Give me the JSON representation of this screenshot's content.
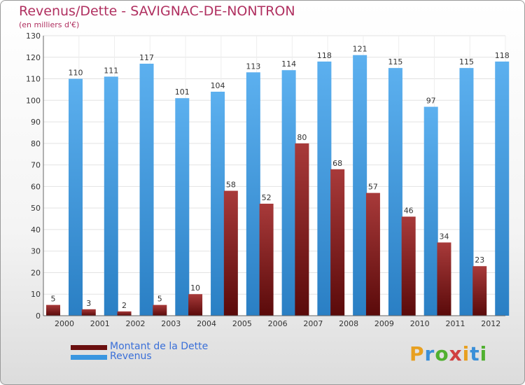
{
  "title": "Revenus/Dette - SAVIGNAC-DE-NONTRON",
  "subtitle": "(en milliers d'€)",
  "brand": {
    "letters": [
      "P",
      "r",
      "o",
      "x",
      "i",
      "t",
      "i"
    ],
    "colors": [
      "#e8a020",
      "#3a8fd8",
      "#50b030",
      "#d04040",
      "#e8a020",
      "#3a8fd8",
      "#50b030"
    ]
  },
  "chart_data": {
    "type": "bar",
    "categories": [
      "2000",
      "2001",
      "2002",
      "2003",
      "2004",
      "2005",
      "2006",
      "2007",
      "2008",
      "2009",
      "2010",
      "2011",
      "2012"
    ],
    "series": [
      {
        "name": "Montant de la Dette",
        "values": [
          5,
          3,
          2,
          5,
          10,
          58,
          52,
          80,
          68,
          57,
          46,
          34,
          23
        ],
        "color": "#7a1a1a"
      },
      {
        "name": "Revenus",
        "values": [
          110,
          111,
          117,
          101,
          104,
          113,
          114,
          118,
          121,
          115,
          97,
          115,
          118
        ],
        "color": "#3a96e0"
      }
    ],
    "ylim": [
      0,
      130
    ],
    "yticks": [
      0,
      10,
      20,
      30,
      40,
      50,
      60,
      70,
      80,
      90,
      100,
      110,
      120,
      130
    ],
    "grid": true,
    "legend": "bottom-left"
  }
}
